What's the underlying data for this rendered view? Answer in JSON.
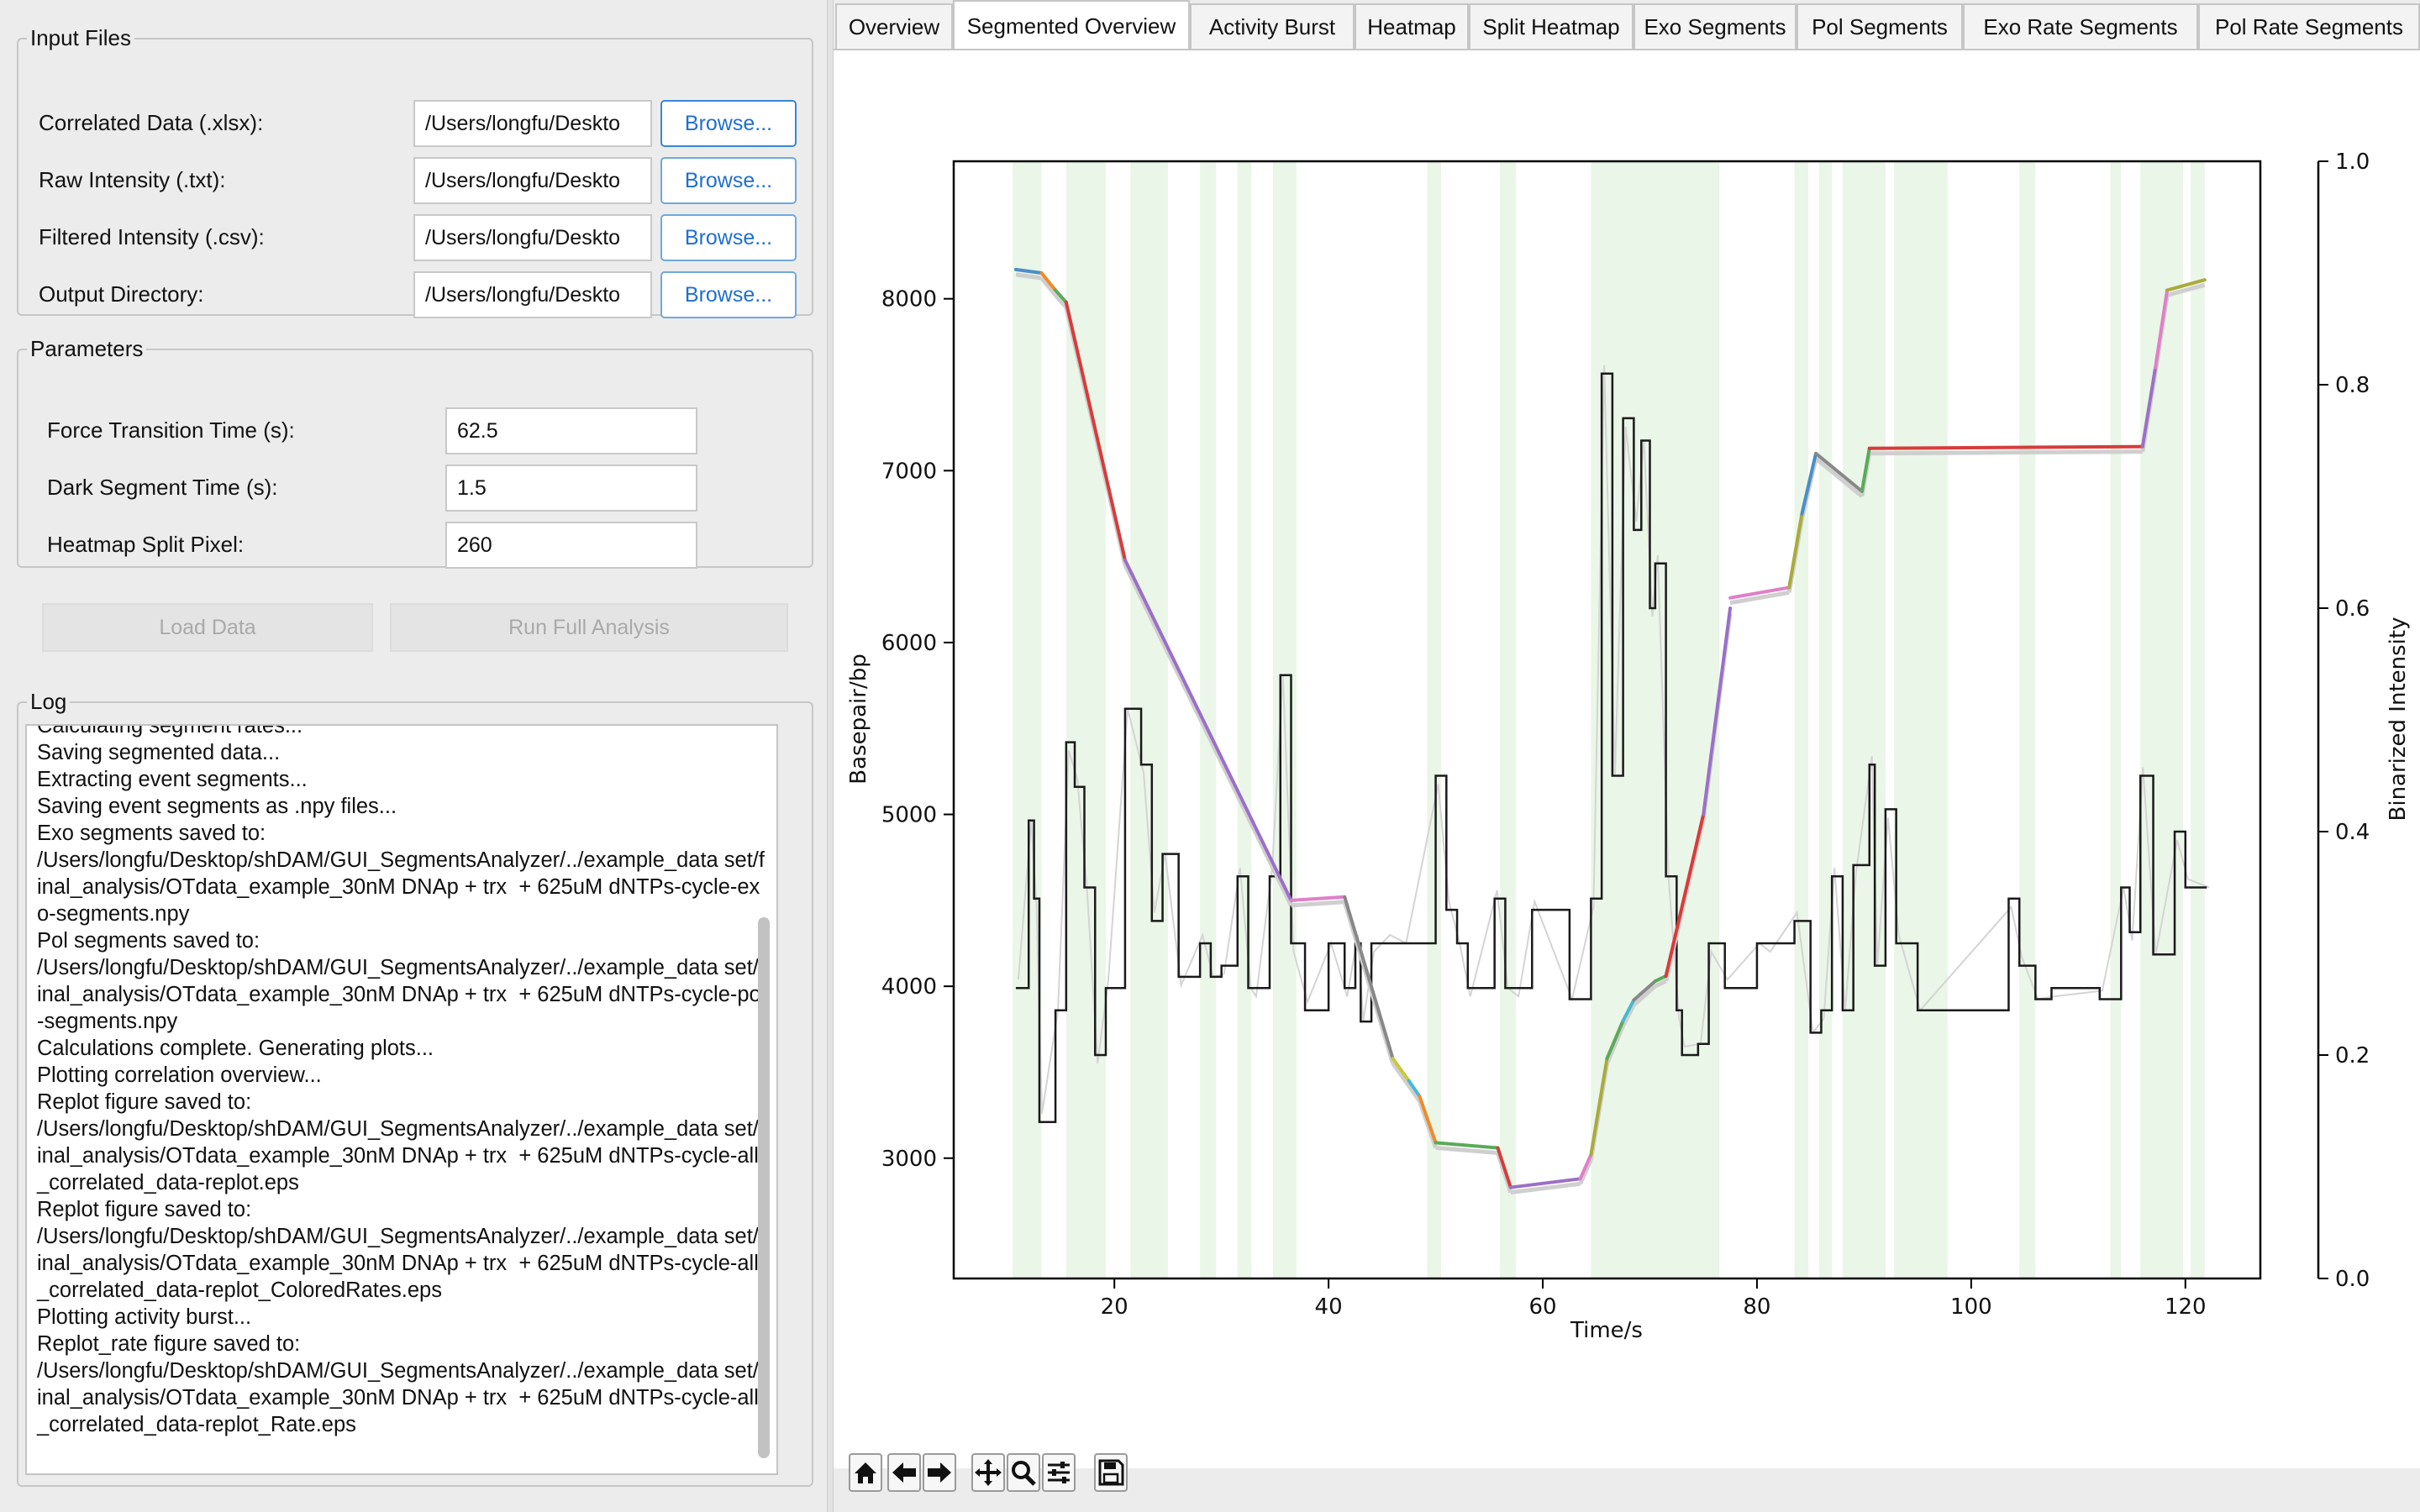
{
  "input_files": {
    "legend": "Input Files",
    "rows": [
      {
        "label": "Correlated Data (.xlsx):",
        "value": "/Users/longfu/Deskto",
        "button": "Browse..."
      },
      {
        "label": "Raw Intensity (.txt):",
        "value": "/Users/longfu/Deskto",
        "button": "Browse..."
      },
      {
        "label": "Filtered Intensity (.csv):",
        "value": "/Users/longfu/Deskto",
        "button": "Browse..."
      },
      {
        "label": "Output Directory:",
        "value": "/Users/longfu/Deskto",
        "button": "Browse..."
      }
    ]
  },
  "parameters": {
    "legend": "Parameters",
    "rows": [
      {
        "label": "Force Transition Time (s):",
        "value": "62.5"
      },
      {
        "label": "Dark Segment Time (s):",
        "value": "1.5"
      },
      {
        "label": "Heatmap Split Pixel:",
        "value": "260"
      }
    ]
  },
  "actions": {
    "load_label": "Load Data",
    "run_label": "Run Full Analysis"
  },
  "log": {
    "legend": "Log",
    "text": "Calculating segment rates...\nSaving segmented data...\nExtracting event segments...\nSaving event segments as .npy files...\nExo segments saved to:\n/Users/longfu/Desktop/shDAM/GUI_SegmentsAnalyzer/../example_data set/final_analysis/OTdata_example_30nM DNAp + trx  + 625uM dNTPs-cycle-exo-segments.npy\nPol segments saved to:\n/Users/longfu/Desktop/shDAM/GUI_SegmentsAnalyzer/../example_data set/final_analysis/OTdata_example_30nM DNAp + trx  + 625uM dNTPs-cycle-pol-segments.npy\nCalculations complete. Generating plots...\nPlotting correlation overview...\nReplot figure saved to:\n/Users/longfu/Desktop/shDAM/GUI_SegmentsAnalyzer/../example_data set/final_analysis/OTdata_example_30nM DNAp + trx  + 625uM dNTPs-cycle-all_correlated_data-replot.eps\nReplot figure saved to:\n/Users/longfu/Desktop/shDAM/GUI_SegmentsAnalyzer/../example_data set/final_analysis/OTdata_example_30nM DNAp + trx  + 625uM dNTPs-cycle-all_correlated_data-replot_ColoredRates.eps\nPlotting activity burst...\nReplot_rate figure saved to:\n/Users/longfu/Desktop/shDAM/GUI_SegmentsAnalyzer/../example_data set/final_analysis/OTdata_example_30nM DNAp + trx  + 625uM dNTPs-cycle-all_correlated_data-replot_Rate.eps"
  },
  "tabs": [
    {
      "label": "Overview",
      "active": false
    },
    {
      "label": "Segmented Overview",
      "active": true
    },
    {
      "label": "Activity Burst",
      "active": false
    },
    {
      "label": "Heatmap",
      "active": false
    },
    {
      "label": "Split Heatmap",
      "active": false
    },
    {
      "label": "Exo Segments",
      "active": false
    },
    {
      "label": "Pol Segments",
      "active": false
    },
    {
      "label": "Exo Rate Segments",
      "active": false
    },
    {
      "label": "Pol Rate Segments",
      "active": false
    }
  ],
  "toolbar": {
    "icons": [
      "home-icon",
      "back-arrow-icon",
      "forward-arrow-icon",
      "pan-icon",
      "zoom-icon",
      "configure-icon",
      "save-icon"
    ]
  },
  "chart_data": {
    "type": "line",
    "title": "",
    "xlabel": "Time/s",
    "ylabel": "Basepair/bp",
    "y2label": "Binarized Intensity",
    "xlim": [
      5,
      127
    ],
    "ylim": [
      2300,
      8800
    ],
    "y2lim": [
      0.0,
      1.0
    ],
    "xticks": [
      20,
      40,
      60,
      80,
      100,
      120
    ],
    "yticks": [
      3000,
      4000,
      5000,
      6000,
      7000,
      8000
    ],
    "y2ticks": [
      0.0,
      0.2,
      0.4,
      0.6,
      0.8,
      1.0
    ],
    "xtick_labels": [
      "20",
      "40",
      "60",
      "80",
      "100",
      "120"
    ],
    "ytick_labels": [
      "3000",
      "4000",
      "5000",
      "6000",
      "7000",
      "8000"
    ],
    "y2tick_labels": [
      "0.0",
      "0.2",
      "0.4",
      "0.6",
      "0.8",
      "1.0"
    ],
    "shaded_intervals": [
      [
        10.5,
        13.2
      ],
      [
        15.5,
        19.2
      ],
      [
        21.5,
        25.0
      ],
      [
        28.0,
        29.5
      ],
      [
        31.5,
        32.8
      ],
      [
        34.8,
        37.0
      ],
      [
        49.2,
        50.5
      ],
      [
        56.0,
        57.5
      ],
      [
        64.5,
        76.5
      ],
      [
        83.5,
        84.8
      ],
      [
        85.8,
        87.0
      ],
      [
        88.0,
        92.0
      ],
      [
        92.8,
        97.8
      ],
      [
        104.5,
        106.0
      ],
      [
        113.0,
        114.0
      ],
      [
        115.8,
        119.8
      ],
      [
        120.5,
        121.8
      ]
    ],
    "segments": [
      {
        "x": [
          10.8,
          13.2
        ],
        "y": [
          8170,
          8150
        ],
        "color": "#4a8ec6"
      },
      {
        "x": [
          13.2,
          14.5
        ],
        "y": [
          8150,
          8050
        ],
        "color": "#f08a2a"
      },
      {
        "x": [
          14.5,
          15.5
        ],
        "y": [
          8050,
          7980
        ],
        "color": "#5aaa5a"
      },
      {
        "x": [
          15.5,
          21.0
        ],
        "y": [
          7980,
          6480
        ],
        "color": "#d63c3c"
      },
      {
        "x": [
          21.0,
          36.5
        ],
        "y": [
          6480,
          4500
        ],
        "color": "#9b6fc8"
      },
      {
        "x": [
          36.5,
          41.5
        ],
        "y": [
          4500,
          4520
        ],
        "color": "#e07fc8"
      },
      {
        "x": [
          41.5,
          46.0
        ],
        "y": [
          4520,
          3580
        ],
        "color": "#888888"
      },
      {
        "x": [
          46.0,
          47.5
        ],
        "y": [
          3580,
          3450
        ],
        "color": "#c8c83c"
      },
      {
        "x": [
          47.5,
          48.5
        ],
        "y": [
          3450,
          3360
        ],
        "color": "#47b8d2"
      },
      {
        "x": [
          48.5,
          50.0
        ],
        "y": [
          3360,
          3090
        ],
        "color": "#f08a2a"
      },
      {
        "x": [
          50.0,
          55.8
        ],
        "y": [
          3090,
          3060
        ],
        "color": "#5aaa5a"
      },
      {
        "x": [
          55.8,
          57.0
        ],
        "y": [
          3060,
          2830
        ],
        "color": "#d63c3c"
      },
      {
        "x": [
          57.0,
          63.5
        ],
        "y": [
          2830,
          2880
        ],
        "color": "#9b6fc8"
      },
      {
        "x": [
          63.5,
          64.5
        ],
        "y": [
          2880,
          3020
        ],
        "color": "#e07fc8"
      },
      {
        "x": [
          64.5,
          66.0
        ],
        "y": [
          3020,
          3580
        ],
        "color": "#aaaa3c"
      },
      {
        "x": [
          66.0,
          67.5
        ],
        "y": [
          3580,
          3800
        ],
        "color": "#5aaa5a"
      },
      {
        "x": [
          67.5,
          68.5
        ],
        "y": [
          3800,
          3920
        ],
        "color": "#47b8d2"
      },
      {
        "x": [
          68.5,
          70.5
        ],
        "y": [
          3920,
          4030
        ],
        "color": "#888888"
      },
      {
        "x": [
          70.5,
          71.5
        ],
        "y": [
          4030,
          4060
        ],
        "color": "#5aaa5a"
      },
      {
        "x": [
          71.5,
          75.0
        ],
        "y": [
          4060,
          5000
        ],
        "color": "#d63c3c"
      },
      {
        "x": [
          75.0,
          77.5
        ],
        "y": [
          5000,
          6200
        ],
        "color": "#9b6fc8"
      },
      {
        "x": [
          77.5,
          83.0
        ],
        "y": [
          6260,
          6320
        ],
        "color": "#e07fc8"
      },
      {
        "x": [
          83.0,
          84.2
        ],
        "y": [
          6320,
          6750
        ],
        "color": "#aaaa3c"
      },
      {
        "x": [
          84.2,
          85.5
        ],
        "y": [
          6750,
          7100
        ],
        "color": "#4a8ec6"
      },
      {
        "x": [
          85.5,
          89.8
        ],
        "y": [
          7100,
          6880
        ],
        "color": "#888888"
      },
      {
        "x": [
          89.8,
          90.5
        ],
        "y": [
          6880,
          7130
        ],
        "color": "#5aaa5a"
      },
      {
        "x": [
          90.5,
          116.0
        ],
        "y": [
          7130,
          7140
        ],
        "color": "#d63c3c"
      },
      {
        "x": [
          116.0,
          117.2
        ],
        "y": [
          7140,
          7600
        ],
        "color": "#9b6fc8"
      },
      {
        "x": [
          117.2,
          118.3
        ],
        "y": [
          7600,
          8050
        ],
        "color": "#e07fc8"
      },
      {
        "x": [
          118.3,
          121.8
        ],
        "y": [
          8050,
          8110
        ],
        "color": "#aaaa3c"
      }
    ],
    "binarized_steps": {
      "x": [
        10.8,
        12.0,
        12.5,
        13.0,
        14.5,
        15.5,
        16.3,
        17.2,
        18.2,
        19.2,
        21.0,
        22.5,
        23.5,
        24.5,
        26.0,
        28.0,
        29.0,
        30.0,
        31.5,
        32.5,
        33.0,
        34.5,
        35.5,
        36.5,
        37.8,
        40.0,
        41.5,
        42.5,
        43.0,
        44.0,
        45.5,
        47.0,
        50.0,
        51.0,
        52.0,
        53.0,
        55.5,
        56.5,
        57.5,
        59.0,
        62.5,
        64.5,
        65.5,
        66.5,
        67.5,
        68.5,
        69.2,
        70.0,
        70.5,
        71.5,
        72.5,
        73.0,
        74.5,
        75.5,
        77.0,
        80.0,
        81.0,
        83.5,
        85.0,
        86.0,
        87.0,
        88.0,
        89.0,
        90.5,
        91.0,
        92.0,
        93.0,
        95.0,
        103.5,
        104.5,
        106.0,
        107.5,
        112.0,
        114.0,
        114.8,
        115.8,
        117.0,
        119.0,
        120.0,
        122.0
      ],
      "y": [
        0.26,
        0.41,
        0.34,
        0.14,
        0.24,
        0.48,
        0.44,
        0.35,
        0.2,
        0.26,
        0.51,
        0.46,
        0.32,
        0.38,
        0.27,
        0.3,
        0.27,
        0.28,
        0.36,
        0.26,
        0.26,
        0.36,
        0.54,
        0.3,
        0.24,
        0.3,
        0.26,
        0.3,
        0.23,
        0.3,
        0.3,
        0.3,
        0.45,
        0.33,
        0.3,
        0.26,
        0.34,
        0.26,
        0.26,
        0.33,
        0.25,
        0.34,
        0.81,
        0.45,
        0.77,
        0.67,
        0.75,
        0.6,
        0.64,
        0.36,
        0.24,
        0.2,
        0.21,
        0.3,
        0.26,
        0.3,
        0.3,
        0.32,
        0.22,
        0.24,
        0.36,
        0.24,
        0.37,
        0.46,
        0.28,
        0.42,
        0.3,
        0.24,
        0.34,
        0.28,
        0.25,
        0.26,
        0.25,
        0.35,
        0.31,
        0.45,
        0.29,
        0.4,
        0.35,
        0.35
      ]
    }
  }
}
